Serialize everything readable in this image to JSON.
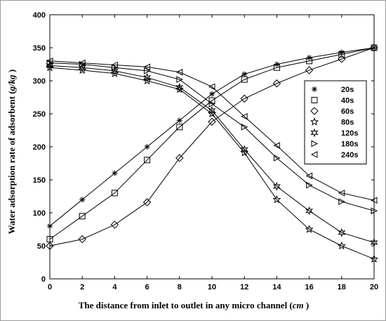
{
  "chart_data": {
    "type": "line",
    "xlabel_prefix": "The distance from inlet to outlet in any micro channel (",
    "xlabel_unit": "cm",
    "xlabel_suffix": ")",
    "ylabel_prefix": "Water adsorption rate of adsorbent (",
    "ylabel_unit": "g/kg",
    "ylabel_suffix": ")",
    "xlim": [
      0,
      20
    ],
    "ylim": [
      0,
      400
    ],
    "xticks": [
      0,
      2,
      4,
      6,
      8,
      10,
      12,
      14,
      16,
      18,
      20
    ],
    "yticks": [
      0,
      50,
      100,
      150,
      200,
      250,
      300,
      350,
      400
    ],
    "grid": false,
    "legend_position": "right",
    "x": [
      0,
      2,
      4,
      6,
      8,
      10,
      12,
      14,
      16,
      18,
      20
    ],
    "series": [
      {
        "name": "20s",
        "marker": "asterisk",
        "values": [
          80,
          120,
          160,
          200,
          240,
          280,
          310,
          325,
          335,
          343,
          350
        ]
      },
      {
        "name": "40s",
        "marker": "square",
        "values": [
          60,
          95,
          130,
          180,
          230,
          270,
          302,
          320,
          330,
          340,
          350
        ]
      },
      {
        "name": "60s",
        "marker": "diamond",
        "values": [
          50,
          60,
          82,
          116,
          183,
          238,
          273,
          296,
          316,
          333,
          350
        ]
      },
      {
        "name": "80s",
        "marker": "star5",
        "values": [
          320,
          316,
          311,
          300,
          287,
          250,
          191,
          120,
          75,
          50,
          30
        ]
      },
      {
        "name": "120s",
        "marker": "star6",
        "values": [
          323,
          320,
          315,
          305,
          290,
          255,
          196,
          140,
          103,
          70,
          55
        ]
      },
      {
        "name": "180s",
        "marker": "triangle-right",
        "values": [
          327,
          325,
          320,
          315,
          302,
          265,
          230,
          183,
          142,
          117,
          103
        ]
      },
      {
        "name": "240s",
        "marker": "triangle-left",
        "values": [
          330,
          327,
          324,
          321,
          313,
          291,
          246,
          202,
          156,
          130,
          119
        ]
      }
    ]
  }
}
